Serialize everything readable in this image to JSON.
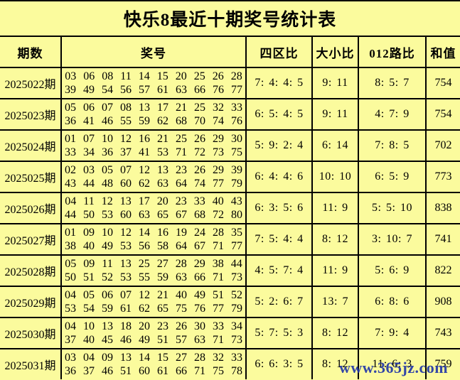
{
  "colors": {
    "background": "#FBFB9D",
    "grid_line": "#000000",
    "text": "#000000",
    "watermark": "#2337A8"
  },
  "watermark": {
    "text": "www.365jz.com"
  },
  "chart_data": {
    "type": "table",
    "title": "快乐8最近十期奖号统计表",
    "columns": [
      "期数",
      "奖号",
      "四区比",
      "大小比",
      "012路比",
      "和值"
    ],
    "rows": [
      {
        "period": "2025022期",
        "numbers1": "03 06 08 11 14 15 20 25 26 28",
        "numbers2": "39 49 54 56 57 61 63 66 76 77",
        "zone": "7: 4: 4: 5",
        "bigsmall": "9: 11",
        "road": "8: 5: 7",
        "sum": "754"
      },
      {
        "period": "2025023期",
        "numbers1": "05 06 07 08 13 17 21 25 32 33",
        "numbers2": "36 41 46 55 59 62 68 70 74 76",
        "zone": "6: 5: 4: 5",
        "bigsmall": "9: 11",
        "road": "4: 7: 9",
        "sum": "754"
      },
      {
        "period": "2025024期",
        "numbers1": "01 07 10 12 16 21 25 26 29 30",
        "numbers2": "33 34 36 37 41 53 71 72 73 75",
        "zone": "5: 9: 2: 4",
        "bigsmall": "6: 14",
        "road": "7: 8: 5",
        "sum": "702"
      },
      {
        "period": "2025025期",
        "numbers1": "02 03 05 07 12 13 23 26 29 39",
        "numbers2": "43 44 48 60 62 63 64 74 77 79",
        "zone": "6: 4: 4: 6",
        "bigsmall": "10: 10",
        "road": "6: 5: 9",
        "sum": "773"
      },
      {
        "period": "2025026期",
        "numbers1": "04 11 12 13 17 20 23 33 40 43",
        "numbers2": "44 50 53 60 63 65 67 68 72 80",
        "zone": "6: 3: 5: 6",
        "bigsmall": "11: 9",
        "road": "5: 5: 10",
        "sum": "838"
      },
      {
        "period": "2025027期",
        "numbers1": "01 09 10 12 14 16 19 24 28 35",
        "numbers2": "38 40 49 53 56 58 64 67 71 77",
        "zone": "7: 5: 4: 4",
        "bigsmall": "8: 12",
        "road": "3: 10: 7",
        "sum": "741"
      },
      {
        "period": "2025028期",
        "numbers1": "05 09 11 13 25 27 28 29 38 44",
        "numbers2": "50 51 52 53 55 59 63 66 71 73",
        "zone": "4: 5: 7: 4",
        "bigsmall": "11: 9",
        "road": "5: 6: 9",
        "sum": "822"
      },
      {
        "period": "2025029期",
        "numbers1": "04 05 06 07 12 21 40 49 51 52",
        "numbers2": "53 54 59 61 62 65 75 76 77 79",
        "zone": "5: 2: 6: 7",
        "bigsmall": "13: 7",
        "road": "6: 8: 6",
        "sum": "908"
      },
      {
        "period": "2025030期",
        "numbers1": "04 10 13 18 20 23 26 30 33 34",
        "numbers2": "37 40 45 46 49 51 57 63 71 73",
        "zone": "5: 7: 5: 3",
        "bigsmall": "8: 12",
        "road": "7: 9: 4",
        "sum": "743"
      },
      {
        "period": "2025031期",
        "numbers1": "03 04 09 13 14 15 27 28 32 33",
        "numbers2": "36 37 46 51 60 61 66 71 75 78",
        "zone": "6: 6: 3: 5",
        "bigsmall": "8: 12",
        "road": "11: 6: 3",
        "sum": "759"
      }
    ]
  }
}
